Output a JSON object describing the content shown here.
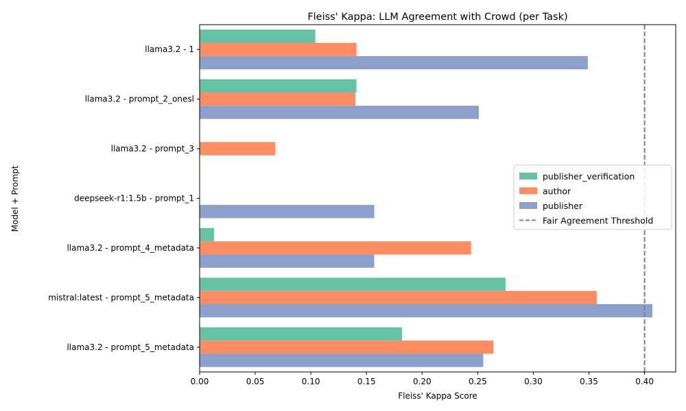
{
  "chart_data": {
    "type": "bar",
    "orientation": "horizontal",
    "title": "Fleiss' Kappa: LLM Agreement with Crowd (per Task)",
    "xlabel": "Fleiss' Kappa Score",
    "ylabel": "Model + Prompt",
    "xlim": [
      0,
      0.428
    ],
    "xticks": [
      "0.00",
      "0.05",
      "0.10",
      "0.15",
      "0.20",
      "0.25",
      "0.30",
      "0.35",
      "0.40"
    ],
    "categories": [
      "llama3.2 - 1",
      "llama3.2 - prompt_2_onesl",
      "llama3.2 - prompt_3",
      "deepseek-r1:1.5b - prompt_1",
      "llama3.2 - prompt_4_metadata",
      "mistral:latest - prompt_5_metadata",
      "llama3.2 - prompt_5_metadata"
    ],
    "series": [
      {
        "name": "publisher_verification",
        "color": "#66c2a5",
        "values": [
          0.104,
          0.141,
          0.0,
          0.0,
          0.013,
          0.275,
          0.182
        ]
      },
      {
        "name": "author",
        "color": "#fc8d62",
        "values": [
          0.141,
          0.14,
          0.068,
          0.0,
          0.244,
          0.357,
          0.264
        ]
      },
      {
        "name": "publisher",
        "color": "#8da0cb",
        "values": [
          0.349,
          0.251,
          0.0,
          0.157,
          0.157,
          0.407,
          0.255
        ]
      }
    ],
    "reference_line": {
      "name": "Fair Agreement Threshold",
      "value": 0.4,
      "style": "dashed",
      "color": "#808080"
    },
    "legend": {
      "placement": "center-right"
    },
    "grid": false
  }
}
